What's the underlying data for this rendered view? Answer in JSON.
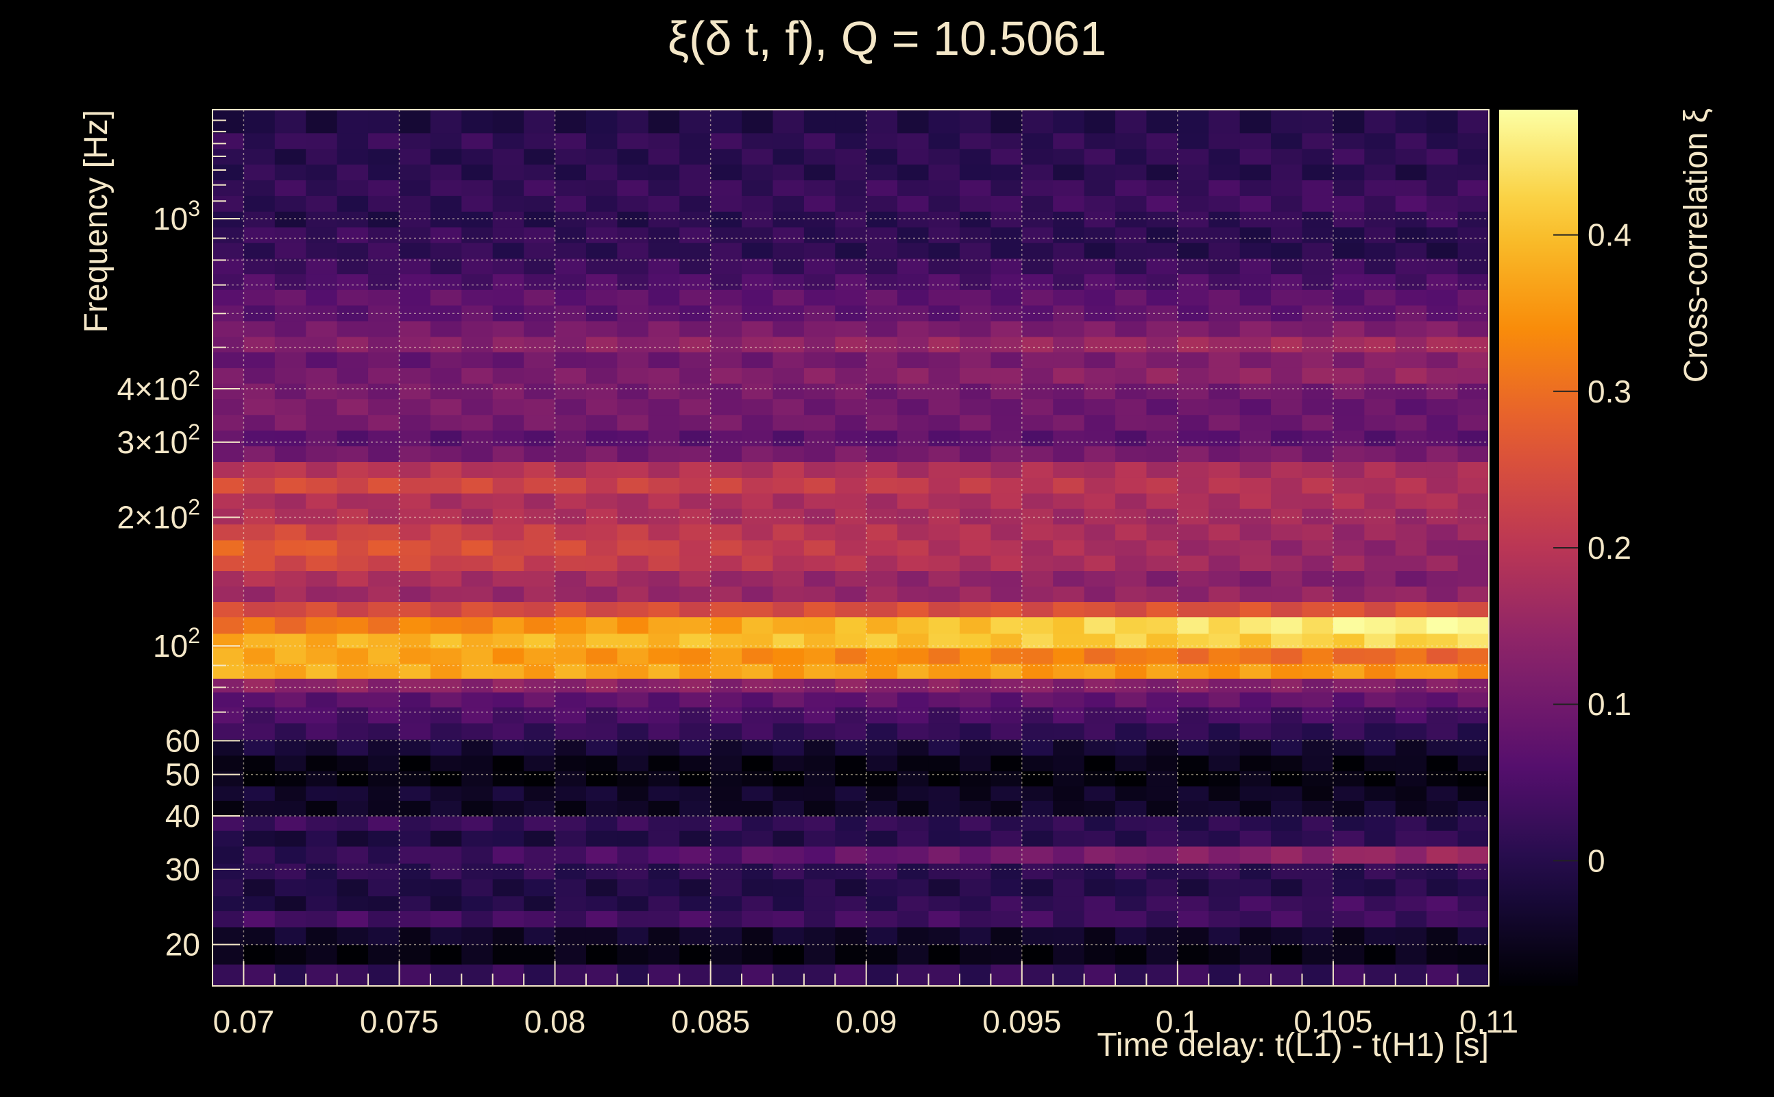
{
  "chart_data": {
    "type": "heatmap",
    "title": "ξ(δ t, f), Q = 10.5061",
    "xlabel": "Time delay: t(L1) - t(H1) [s]",
    "ylabel": "Frequency [Hz]",
    "colorbar_label": "Cross-correlation ξ",
    "xlim": [
      0.069,
      0.11
    ],
    "ylim": [
      16,
      1800
    ],
    "yscale": "log",
    "zlim": [
      -0.08,
      0.48
    ],
    "grid": true,
    "colormap": "inferno",
    "x_ticks": [
      {
        "value": 0.07,
        "label": "0.07"
      },
      {
        "value": 0.075,
        "label": "0.075"
      },
      {
        "value": 0.08,
        "label": "0.08"
      },
      {
        "value": 0.085,
        "label": "0.085"
      },
      {
        "value": 0.09,
        "label": "0.09"
      },
      {
        "value": 0.095,
        "label": "0.095"
      },
      {
        "value": 0.1,
        "label": "0.1"
      },
      {
        "value": 0.105,
        "label": "0.105"
      },
      {
        "value": 0.11,
        "label": "0.11"
      }
    ],
    "y_ticks": [
      {
        "value": 20,
        "label": "20",
        "sup": ""
      },
      {
        "value": 30,
        "label": "30",
        "sup": ""
      },
      {
        "value": 40,
        "label": "40",
        "sup": ""
      },
      {
        "value": 50,
        "label": "50",
        "sup": ""
      },
      {
        "value": 60,
        "label": "60",
        "sup": ""
      },
      {
        "value": 100,
        "label": "10",
        "sup": "2"
      },
      {
        "value": 200,
        "label": "2×10",
        "sup": "2"
      },
      {
        "value": 300,
        "label": "3×10",
        "sup": "2"
      },
      {
        "value": 400,
        "label": "4×10",
        "sup": "2"
      },
      {
        "value": 1000,
        "label": "10",
        "sup": "3"
      }
    ],
    "colorbar_ticks": [
      {
        "value": 0,
        "label": "0"
      },
      {
        "value": 0.1,
        "label": "0.1"
      },
      {
        "value": 0.2,
        "label": "0.2"
      },
      {
        "value": 0.3,
        "label": "0.3"
      },
      {
        "value": 0.4,
        "label": "0.4"
      }
    ],
    "x_bins": 41,
    "frequency_bands": [
      {
        "f_low": 16,
        "f_high": 18,
        "start": 0.02,
        "end": 0.02
      },
      {
        "f_low": 18,
        "f_high": 20,
        "start": -0.07,
        "end": -0.06
      },
      {
        "f_low": 20,
        "f_high": 22,
        "start": -0.04,
        "end": -0.04
      },
      {
        "f_low": 22,
        "f_high": 24,
        "start": 0.04,
        "end": 0.03
      },
      {
        "f_low": 24,
        "f_high": 26,
        "start": -0.02,
        "end": 0.04
      },
      {
        "f_low": 26,
        "f_high": 28.5,
        "start": -0.01,
        "end": 0.0
      },
      {
        "f_low": 28.5,
        "f_high": 31,
        "start": 0.01,
        "end": 0.01
      },
      {
        "f_low": 31,
        "f_high": 34,
        "start": 0.0,
        "end": 0.16
      },
      {
        "f_low": 34,
        "f_high": 37,
        "start": -0.02,
        "end": 0.02
      },
      {
        "f_low": 37,
        "f_high": 40,
        "start": 0.03,
        "end": 0.0
      },
      {
        "f_low": 40,
        "f_high": 43.5,
        "start": -0.05,
        "end": -0.04
      },
      {
        "f_low": 43.5,
        "f_high": 47,
        "start": -0.03,
        "end": -0.05
      },
      {
        "f_low": 47,
        "f_high": 51,
        "start": -0.07,
        "end": -0.07
      },
      {
        "f_low": 51,
        "f_high": 55.5,
        "start": -0.06,
        "end": -0.06
      },
      {
        "f_low": 55.5,
        "f_high": 60.5,
        "start": -0.02,
        "end": -0.03
      },
      {
        "f_low": 60.5,
        "f_high": 66,
        "start": 0.03,
        "end": 0.01
      },
      {
        "f_low": 66,
        "f_high": 72,
        "start": 0.05,
        "end": 0.04
      },
      {
        "f_low": 72,
        "f_high": 78,
        "start": 0.07,
        "end": 0.08
      },
      {
        "f_low": 78,
        "f_high": 84,
        "start": 0.14,
        "end": 0.12
      },
      {
        "f_low": 84,
        "f_high": 91,
        "start": 0.38,
        "end": 0.35
      },
      {
        "f_low": 91,
        "f_high": 99,
        "start": 0.38,
        "end": 0.29
      },
      {
        "f_low": 99,
        "f_high": 107,
        "start": 0.38,
        "end": 0.43
      },
      {
        "f_low": 107,
        "f_high": 117,
        "start": 0.3,
        "end": 0.48
      },
      {
        "f_low": 117,
        "f_high": 127,
        "start": 0.24,
        "end": 0.26
      },
      {
        "f_low": 127,
        "f_high": 138,
        "start": 0.16,
        "end": 0.14
      },
      {
        "f_low": 138,
        "f_high": 150,
        "start": 0.19,
        "end": 0.11
      },
      {
        "f_low": 150,
        "f_high": 163,
        "start": 0.25,
        "end": 0.14
      },
      {
        "f_low": 163,
        "f_high": 177,
        "start": 0.28,
        "end": 0.13
      },
      {
        "f_low": 177,
        "f_high": 193,
        "start": 0.24,
        "end": 0.15
      },
      {
        "f_low": 193,
        "f_high": 210,
        "start": 0.19,
        "end": 0.16
      },
      {
        "f_low": 210,
        "f_high": 228,
        "start": 0.18,
        "end": 0.18
      },
      {
        "f_low": 228,
        "f_high": 248,
        "start": 0.25,
        "end": 0.18
      },
      {
        "f_low": 248,
        "f_high": 270,
        "start": 0.2,
        "end": 0.17
      },
      {
        "f_low": 270,
        "f_high": 294,
        "start": 0.1,
        "end": 0.11
      },
      {
        "f_low": 294,
        "f_high": 320,
        "start": 0.07,
        "end": 0.07
      },
      {
        "f_low": 320,
        "f_high": 348,
        "start": 0.11,
        "end": 0.09
      },
      {
        "f_low": 348,
        "f_high": 379,
        "start": 0.12,
        "end": 0.08
      },
      {
        "f_low": 379,
        "f_high": 412,
        "start": 0.11,
        "end": 0.1
      },
      {
        "f_low": 412,
        "f_high": 448,
        "start": 0.1,
        "end": 0.15
      },
      {
        "f_low": 448,
        "f_high": 488,
        "start": 0.08,
        "end": 0.13
      },
      {
        "f_low": 488,
        "f_high": 530,
        "start": 0.12,
        "end": 0.17
      },
      {
        "f_low": 530,
        "f_high": 577,
        "start": 0.1,
        "end": 0.12
      },
      {
        "f_low": 577,
        "f_high": 628,
        "start": 0.07,
        "end": 0.08
      },
      {
        "f_low": 628,
        "f_high": 683,
        "start": 0.08,
        "end": 0.07
      },
      {
        "f_low": 683,
        "f_high": 743,
        "start": 0.05,
        "end": 0.05
      },
      {
        "f_low": 743,
        "f_high": 808,
        "start": 0.03,
        "end": 0.03
      },
      {
        "f_low": 808,
        "f_high": 880,
        "start": 0.02,
        "end": 0.0
      },
      {
        "f_low": 880,
        "f_high": 957,
        "start": 0.03,
        "end": 0.0
      },
      {
        "f_low": 957,
        "f_high": 1041,
        "start": 0.0,
        "end": 0.02
      },
      {
        "f_low": 1041,
        "f_high": 1133,
        "start": 0.01,
        "end": 0.04
      },
      {
        "f_low": 1133,
        "f_high": 1233,
        "start": 0.02,
        "end": 0.03
      },
      {
        "f_low": 1233,
        "f_high": 1342,
        "start": 0.01,
        "end": 0.0
      },
      {
        "f_low": 1342,
        "f_high": 1460,
        "start": 0.0,
        "end": 0.02
      },
      {
        "f_low": 1460,
        "f_high": 1589,
        "start": 0.02,
        "end": 0.01
      },
      {
        "f_low": 1589,
        "f_high": 1800,
        "start": -0.01,
        "end": 0.0
      }
    ]
  }
}
